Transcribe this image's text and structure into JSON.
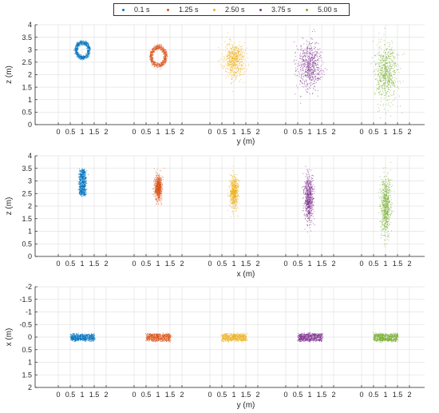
{
  "legend": {
    "items": [
      {
        "label": "0.1 s",
        "color": "#0072BD"
      },
      {
        "label": "1.25 s",
        "color": "#D95319"
      },
      {
        "label": "2.50 s",
        "color": "#EDB120"
      },
      {
        "label": "3.75 s",
        "color": "#7E2F8E"
      },
      {
        "label": "5.00 s",
        "color": "#77AC30"
      }
    ]
  },
  "chart_data": [
    {
      "type": "scatter",
      "xlabel": "y (m)",
      "ylabel": "z (m)",
      "xticks": [
        "0",
        "0.5",
        "1",
        "1.5",
        "2"
      ],
      "yticks": [
        "0",
        "0.5",
        "1",
        "1.5",
        "2",
        "2.5",
        "3",
        "3.5",
        "4"
      ],
      "ylim": [
        0,
        4
      ],
      "y_reversed": false,
      "grid": true,
      "panels_xlim": [
        0,
        2
      ],
      "series": [
        {
          "name": "0.1 s",
          "shape": "ring",
          "center": [
            1.0,
            3.0
          ],
          "spread": [
            0.4,
            0.45
          ]
        },
        {
          "name": "1.25 s",
          "shape": "ring",
          "center": [
            1.0,
            2.75
          ],
          "spread": [
            0.45,
            0.55
          ]
        },
        {
          "name": "2.50 s",
          "shape": "blob",
          "center": [
            1.0,
            2.6
          ],
          "spread": [
            0.45,
            0.7
          ]
        },
        {
          "name": "3.75 s",
          "shape": "blob",
          "center": [
            1.0,
            2.35
          ],
          "spread": [
            0.5,
            0.95
          ]
        },
        {
          "name": "5.00 s",
          "shape": "blob",
          "center": [
            1.0,
            2.1
          ],
          "spread": [
            0.5,
            1.15
          ]
        }
      ]
    },
    {
      "type": "scatter",
      "xlabel": "x (m)",
      "ylabel": "z (m)",
      "xticks": [
        "0",
        "0.5",
        "1",
        "1.5",
        "2"
      ],
      "yticks": [
        "0",
        "0.5",
        "1",
        "1.5",
        "2",
        "2.5",
        "3",
        "3.5",
        "4"
      ],
      "ylim": [
        0,
        4
      ],
      "y_reversed": false,
      "grid": true,
      "panels_xlim": [
        0,
        2
      ],
      "series": [
        {
          "name": "0.1 s",
          "shape": "rect",
          "center": [
            1.0,
            2.95
          ],
          "spread": [
            0.13,
            0.5
          ]
        },
        {
          "name": "1.25 s",
          "shape": "blob",
          "center": [
            1.0,
            2.75
          ],
          "spread": [
            0.15,
            0.5
          ]
        },
        {
          "name": "2.50 s",
          "shape": "blob",
          "center": [
            1.0,
            2.55
          ],
          "spread": [
            0.17,
            0.65
          ]
        },
        {
          "name": "3.75 s",
          "shape": "blob",
          "center": [
            0.95,
            2.3
          ],
          "spread": [
            0.2,
            0.95
          ]
        },
        {
          "name": "5.00 s",
          "shape": "blob",
          "center": [
            1.0,
            2.05
          ],
          "spread": [
            0.22,
            1.15
          ]
        }
      ]
    },
    {
      "type": "scatter",
      "xlabel": "y (m)",
      "ylabel": "x (m)",
      "xticks": [
        "0",
        "0.5",
        "1",
        "1.5",
        "2"
      ],
      "yticks": [
        "-2",
        "-1.5",
        "-1",
        "-0.5",
        "0",
        "0.5",
        "1",
        "1.5",
        "2"
      ],
      "ylim": [
        -2,
        2
      ],
      "y_reversed": true,
      "grid": true,
      "panels_xlim": [
        0,
        2
      ],
      "series": [
        {
          "name": "0.1 s",
          "shape": "rect",
          "center": [
            1.0,
            0.0
          ],
          "spread": [
            0.5,
            0.12
          ]
        },
        {
          "name": "1.25 s",
          "shape": "rect",
          "center": [
            1.0,
            0.0
          ],
          "spread": [
            0.5,
            0.13
          ]
        },
        {
          "name": "2.50 s",
          "shape": "rect",
          "center": [
            1.0,
            0.0
          ],
          "spread": [
            0.5,
            0.13
          ]
        },
        {
          "name": "3.75 s",
          "shape": "rect",
          "center": [
            1.0,
            0.0
          ],
          "spread": [
            0.5,
            0.14
          ]
        },
        {
          "name": "5.00 s",
          "shape": "rect",
          "center": [
            1.0,
            0.0
          ],
          "spread": [
            0.5,
            0.14
          ]
        }
      ]
    }
  ]
}
